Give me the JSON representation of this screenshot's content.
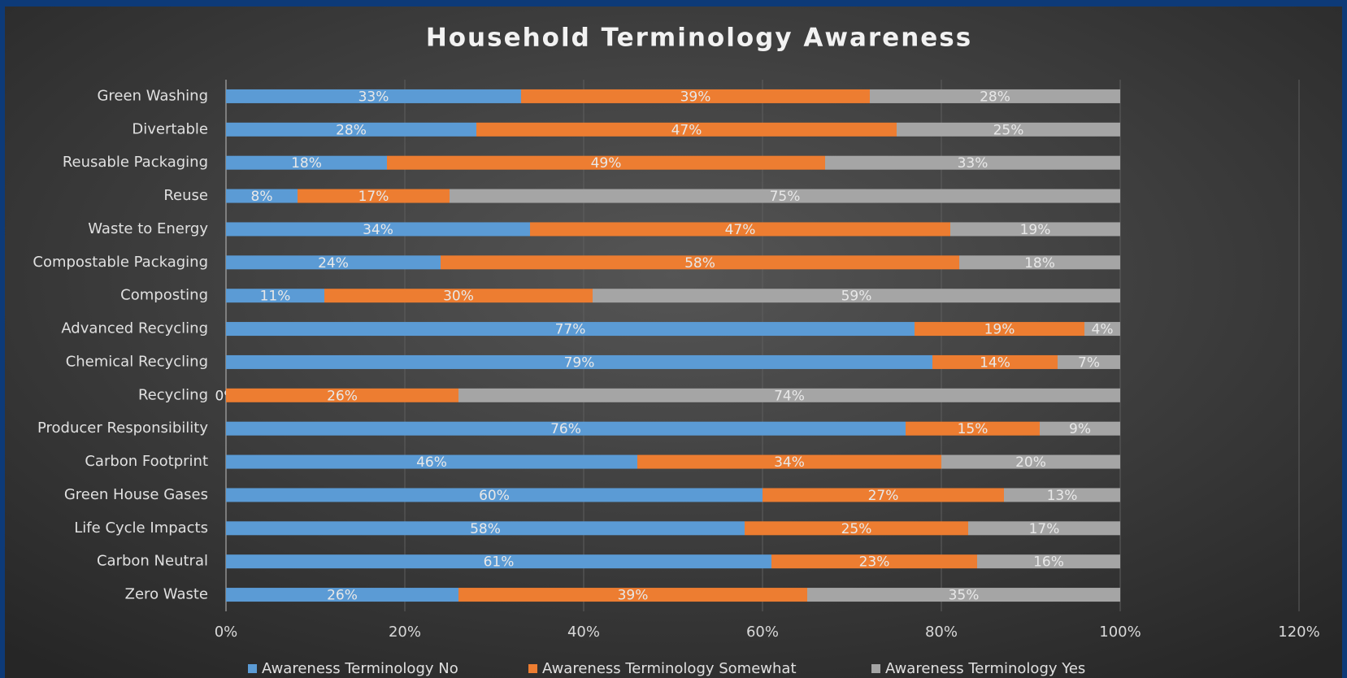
{
  "chart_data": {
    "type": "stacked-bar-horizontal",
    "title": "Household Terminology Awareness",
    "categories": [
      "Green Washing",
      "Divertable",
      "Reusable Packaging",
      "Reuse",
      "Waste to Energy",
      "Compostable Packaging",
      "Composting",
      "Advanced Recycling",
      "Chemical Recycling",
      "Recycling",
      "Producer Responsibility",
      "Carbon Footprint",
      "Green House Gases",
      "Life Cycle Impacts",
      "Carbon Neutral",
      "Zero Waste"
    ],
    "series": [
      {
        "name": "Awareness Terminology No",
        "color": "#5b9bd5",
        "values": [
          33,
          28,
          18,
          8,
          34,
          24,
          11,
          77,
          79,
          0,
          76,
          46,
          60,
          58,
          61,
          26
        ],
        "value_labels": [
          "33%",
          "28%",
          "18%",
          "8%",
          "34%",
          "24%",
          "11%",
          "77%",
          "79%",
          "0%",
          "76%",
          "46%",
          "60%",
          "58%",
          "61%",
          "26%"
        ]
      },
      {
        "name": "Awareness Terminology Somewhat",
        "color": "#ed7d31",
        "values": [
          39,
          47,
          49,
          17,
          47,
          58,
          30,
          19,
          14,
          26,
          15,
          34,
          27,
          25,
          23,
          39
        ],
        "value_labels": [
          "39%",
          "47%",
          "49%",
          "17%",
          "47%",
          "58%",
          "30%",
          "19%",
          "14%",
          "26%",
          "15%",
          "34%",
          "27%",
          "25%",
          "23%",
          "39%"
        ]
      },
      {
        "name": "Awareness Terminology Yes",
        "color": "#a5a5a5",
        "values": [
          28,
          25,
          33,
          75,
          19,
          18,
          59,
          4,
          7,
          74,
          9,
          20,
          13,
          17,
          16,
          35
        ],
        "value_labels": [
          "28%",
          "25%",
          "33%",
          "75%",
          "19%",
          "18%",
          "59%",
          "4%",
          "7%",
          "74%",
          "9%",
          "20%",
          "13%",
          "17%",
          "16%",
          "35%"
        ]
      }
    ],
    "xlim": [
      0,
      120
    ],
    "xticks": [
      {
        "value": 0,
        "label": "0%"
      },
      {
        "value": 20,
        "label": "20%"
      },
      {
        "value": 40,
        "label": "40%"
      },
      {
        "value": 60,
        "label": "60%"
      },
      {
        "value": 80,
        "label": "80%"
      },
      {
        "value": 100,
        "label": "100%"
      },
      {
        "value": 120,
        "label": "120%"
      }
    ],
    "grid": true,
    "legend": "bottom"
  }
}
